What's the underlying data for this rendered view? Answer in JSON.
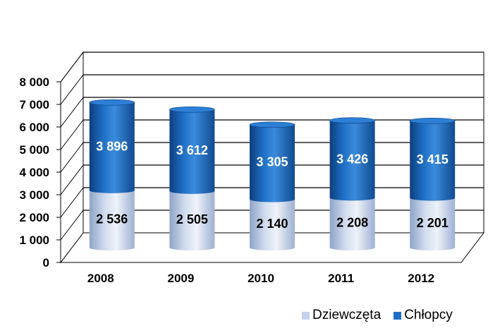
{
  "chart_data": {
    "type": "bar",
    "stacked": true,
    "categories": [
      "2008",
      "2009",
      "2010",
      "2011",
      "2012"
    ],
    "series": [
      {
        "name": "Dziewczęta",
        "values": [
          2536,
          2505,
          2140,
          2208,
          2201
        ],
        "labels": [
          "2 536",
          "2 505",
          "2 140",
          "2 208",
          "2 201"
        ],
        "color": "#c5d3ea",
        "label_color": "#000000"
      },
      {
        "name": "Chłopcy",
        "values": [
          3896,
          3612,
          3305,
          3426,
          3415
        ],
        "labels": [
          "3 896",
          "3 612",
          "3 305",
          "3 426",
          "3 415"
        ],
        "color": "#1f6fc5",
        "label_color": "#ffffff"
      }
    ],
    "ylim": [
      0,
      8000
    ],
    "yticks": [
      0,
      1000,
      2000,
      3000,
      4000,
      5000,
      6000,
      7000,
      8000
    ],
    "ytick_labels": [
      "0",
      "1 000",
      "2 000",
      "3 000",
      "4 000",
      "5 000",
      "6 000",
      "7 000",
      "8 000"
    ],
    "grid": true,
    "legend_position": "bottom-right",
    "style": "3d-cylinder"
  }
}
